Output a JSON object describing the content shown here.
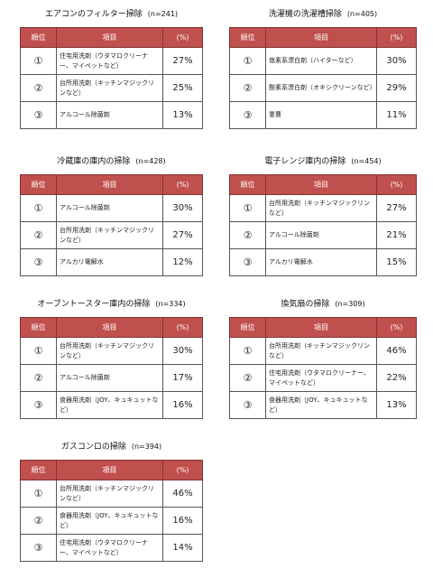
{
  "headers": {
    "rank": "順位",
    "item": "項目",
    "pct": "(%)"
  },
  "blocks": [
    {
      "title": "エアコンのフィルター掃除",
      "n": "(n=241)",
      "rows": [
        {
          "rank": "①",
          "item": "住宅用洗剤（ウタマロクリーナー、マイペットなど）",
          "pct": "27%"
        },
        {
          "rank": "②",
          "item": "台所用洗剤（キッチンマジックリンなど）",
          "pct": "25%"
        },
        {
          "rank": "③",
          "item": "アルコール除菌剤",
          "pct": "13%"
        }
      ]
    },
    {
      "title": "洗濯機の洗濯槽掃除",
      "n": "(n=405)",
      "rows": [
        {
          "rank": "①",
          "item": "塩素系漂白剤（ハイターなど）",
          "pct": "30%"
        },
        {
          "rank": "②",
          "item": "酸素系漂白剤（オキシクリーンなど）",
          "pct": "29%"
        },
        {
          "rank": "③",
          "item": "重曹",
          "pct": "11%"
        }
      ]
    },
    {
      "title": "冷蔵庫の庫内の掃除",
      "n": "(n=428)",
      "rows": [
        {
          "rank": "①",
          "item": "アルコール除菌剤",
          "pct": "30%"
        },
        {
          "rank": "②",
          "item": "台所用洗剤（キッチンマジックリンなど）",
          "pct": "27%"
        },
        {
          "rank": "③",
          "item": "アルカリ電解水",
          "pct": "12%"
        }
      ]
    },
    {
      "title": "電子レンジ庫内の掃除",
      "n": "(n=454)",
      "rows": [
        {
          "rank": "①",
          "item": "台所用洗剤（キッチンマジックリンなど）",
          "pct": "27%"
        },
        {
          "rank": "②",
          "item": "アルコール除菌剤",
          "pct": "21%"
        },
        {
          "rank": "③",
          "item": "アルカリ電解水",
          "pct": "15%"
        }
      ]
    },
    {
      "title": "オーブントースター庫内の掃除",
      "n": "(n=334)",
      "rows": [
        {
          "rank": "①",
          "item": "台所用洗剤（キッチンマジックリンなど）",
          "pct": "30%"
        },
        {
          "rank": "②",
          "item": "アルコール除菌剤",
          "pct": "17%"
        },
        {
          "rank": "③",
          "item": "食器用洗剤（JOY、キュキュットなど）",
          "pct": "16%"
        }
      ]
    },
    {
      "title": "換気扇の掃除",
      "n": "(n=309)",
      "rows": [
        {
          "rank": "①",
          "item": "台所用洗剤（キッチンマジックリンなど）",
          "pct": "46%"
        },
        {
          "rank": "②",
          "item": "住宅用洗剤（ウタマロクリーナー、マイペットなど）",
          "pct": "22%"
        },
        {
          "rank": "③",
          "item": "食器用洗剤（JOY、キュキュットなど）",
          "pct": "13%"
        }
      ]
    },
    {
      "title": "ガスコンロの掃除",
      "n": "(n=394)",
      "rows": [
        {
          "rank": "①",
          "item": "台所用洗剤（キッチンマジックリンなど）",
          "pct": "46%"
        },
        {
          "rank": "②",
          "item": "食器用洗剤（JOY、キュキュットなど）",
          "pct": "16%"
        },
        {
          "rank": "③",
          "item": "住宅用洗剤（ウタマロクリーナー、マイペットなど）",
          "pct": "14%"
        }
      ]
    }
  ]
}
